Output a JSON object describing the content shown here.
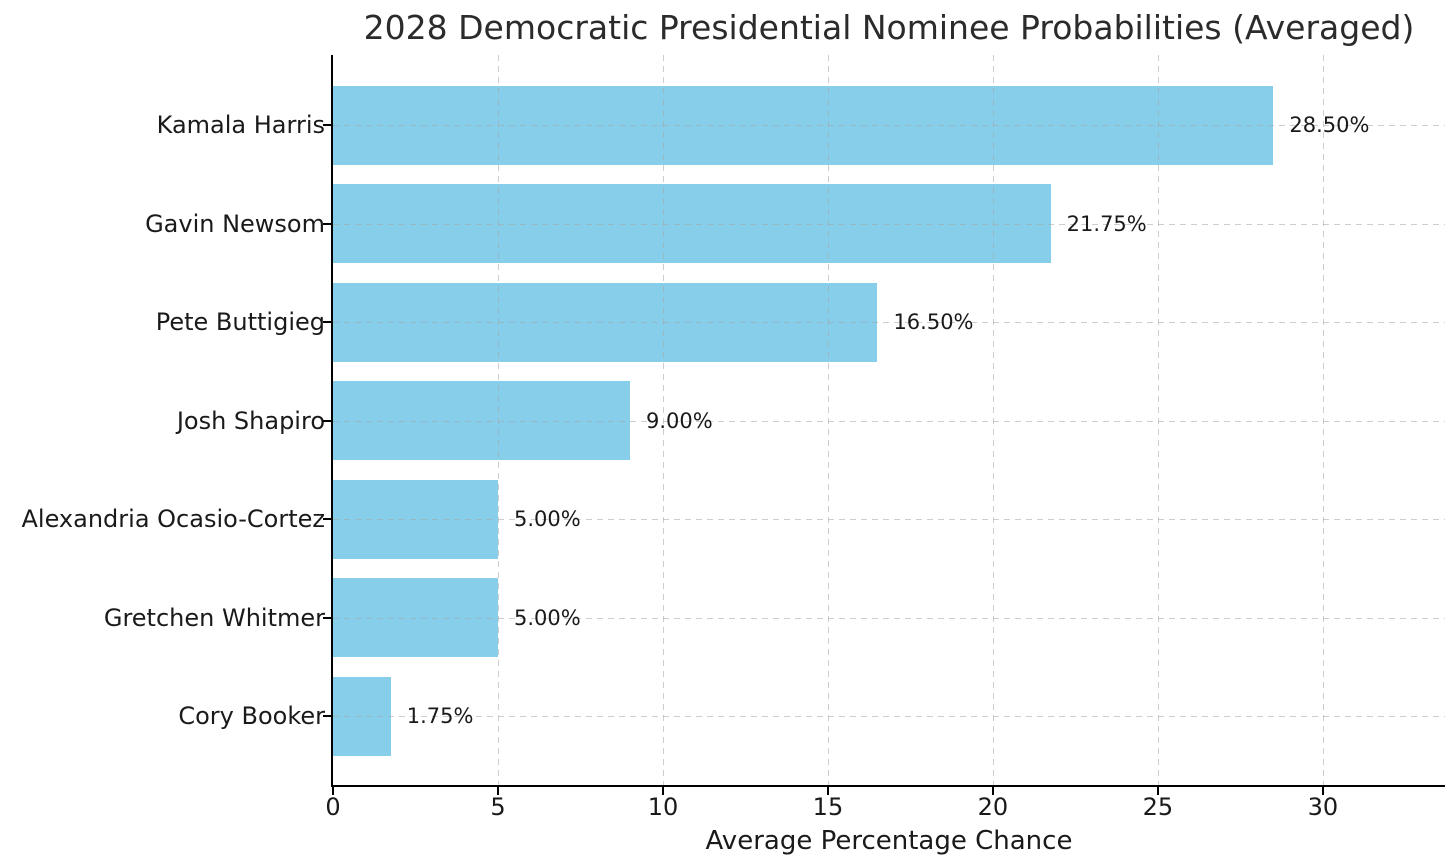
{
  "title": "2028 Democratic Presidential Nominee Probabilities (Averaged)",
  "chart_data": {
    "type": "bar",
    "orientation": "horizontal",
    "title": "2028 Democratic Presidential Nominee Probabilities (Averaged)",
    "xlabel": "Average Percentage Chance",
    "ylabel": "",
    "categories": [
      "Kamala Harris",
      "Gavin Newsom",
      "Pete Buttigieg",
      "Josh Shapiro",
      "Alexandria Ocasio-Cortez",
      "Gretchen Whitmer",
      "Cory Booker"
    ],
    "values": [
      28.5,
      21.75,
      16.5,
      9.0,
      5.0,
      5.0,
      1.75
    ],
    "value_labels": [
      "28.50%",
      "21.75%",
      "16.50%",
      "9.00%",
      "5.00%",
      "5.00%",
      "1.75%"
    ],
    "x_ticks": [
      0,
      5,
      10,
      15,
      20,
      25,
      30
    ],
    "xlim": [
      0,
      33.7
    ],
    "bar_color": "#87CEEB",
    "grid": true,
    "grid_style": "dashed",
    "legend": "none"
  }
}
